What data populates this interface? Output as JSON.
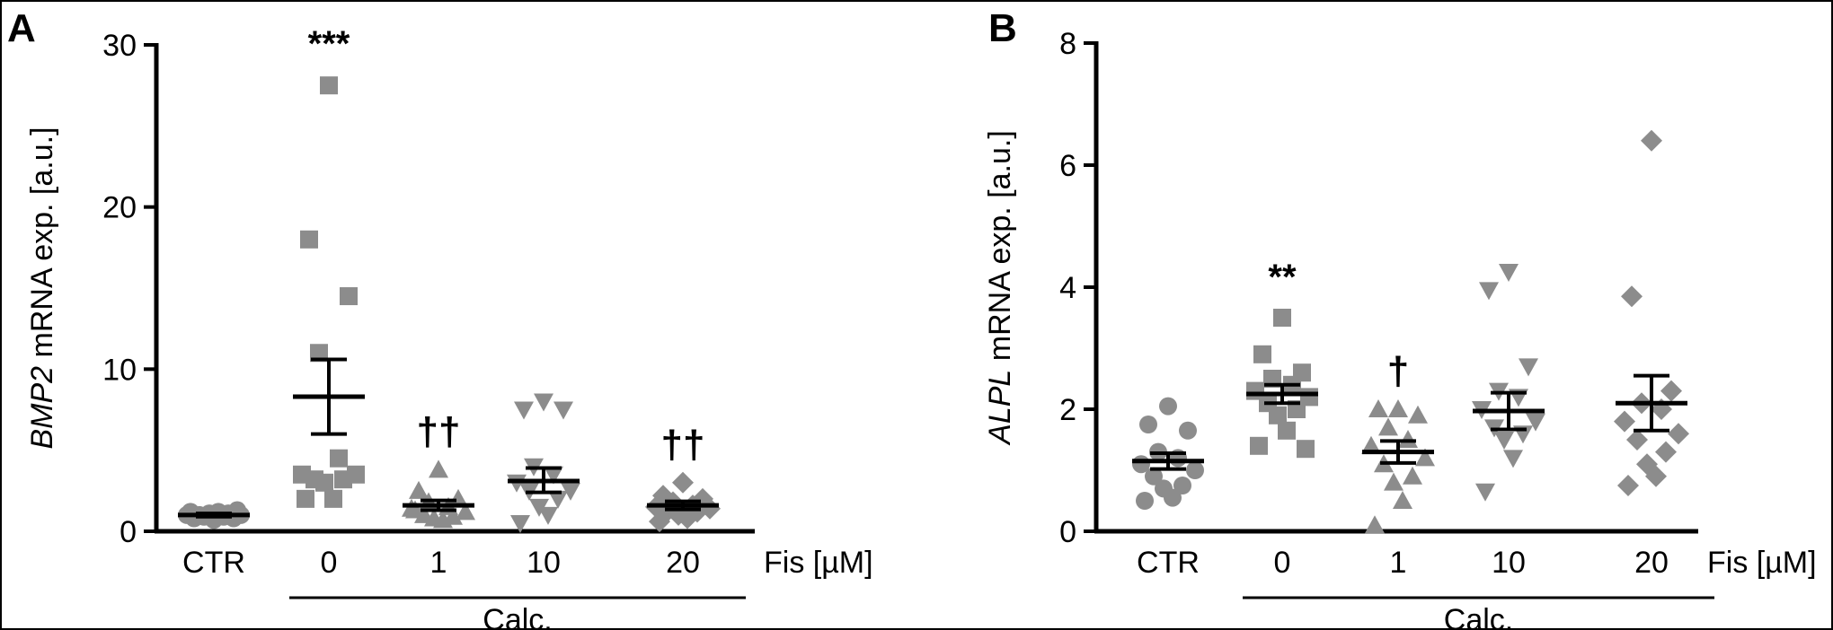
{
  "chart_data": [
    {
      "type": "scatter",
      "panel": "A",
      "ylabel_italic": "BMP2",
      "ylabel_rest": " mRNA exp. [a.u.]",
      "ylim": [
        0,
        30
      ],
      "yticks": [
        "0",
        "10",
        "20",
        "30"
      ],
      "categories": [
        "CTR",
        "0",
        "1",
        "10",
        "20"
      ],
      "x_unit_label": "Fis [µM]",
      "group_label": "Calc.",
      "group_span": [
        1,
        4
      ],
      "marker_color": "#8c8c8c",
      "series": [
        {
          "category": "CTR",
          "marker": "circle",
          "values": [
            0.7,
            0.8,
            0.8,
            0.9,
            0.9,
            1.0,
            1.0,
            1.0,
            1.1,
            1.1,
            1.2,
            1.2,
            1.3
          ],
          "mean": 1.0,
          "sem_low": 0.9,
          "sem_high": 1.1,
          "sig": ""
        },
        {
          "category": "0",
          "marker": "square",
          "values": [
            27.5,
            18.0,
            14.5,
            11.0,
            4.5,
            3.5,
            3.5,
            3.2,
            3.2,
            3.0,
            2.0,
            2.0
          ],
          "mean": 8.3,
          "sem_low": 6.0,
          "sem_high": 10.6,
          "sig": "***"
        },
        {
          "category": "1",
          "marker": "triangle-up",
          "values": [
            3.8,
            2.5,
            2.0,
            1.8,
            1.5,
            1.4,
            1.2,
            1.0,
            0.9,
            0.8,
            0.7,
            1.3
          ],
          "mean": 1.6,
          "sem_low": 1.3,
          "sem_high": 1.9,
          "sig": "††"
        },
        {
          "category": "10",
          "marker": "triangle-down",
          "values": [
            8.0,
            7.5,
            7.5,
            4.0,
            3.5,
            3.0,
            2.5,
            2.5,
            2.0,
            1.5,
            1.0,
            0.5
          ],
          "mean": 3.1,
          "sem_low": 2.4,
          "sem_high": 3.9,
          "sig": ""
        },
        {
          "category": "20",
          "marker": "diamond",
          "values": [
            3.0,
            2.2,
            2.0,
            1.8,
            1.6,
            1.5,
            1.4,
            1.3,
            1.2,
            1.0,
            0.8,
            0.6
          ],
          "mean": 1.6,
          "sem_low": 1.35,
          "sem_high": 1.85,
          "sig": "††"
        }
      ]
    },
    {
      "type": "scatter",
      "panel": "B",
      "ylabel_italic": "ALPL",
      "ylabel_rest": " mRNA exp. [a.u.]",
      "ylim": [
        0,
        8
      ],
      "yticks": [
        "0",
        "2",
        "4",
        "6",
        "8"
      ],
      "categories": [
        "CTR",
        "0",
        "1",
        "10",
        "20"
      ],
      "x_unit_label": "Fis [µM]",
      "group_label": "Calc.",
      "group_span": [
        1,
        4
      ],
      "marker_color": "#8c8c8c",
      "series": [
        {
          "category": "CTR",
          "marker": "circle",
          "values": [
            2.05,
            1.75,
            1.65,
            1.3,
            1.2,
            1.1,
            1.0,
            0.9,
            0.75,
            0.7,
            0.55,
            0.5
          ],
          "mean": 1.15,
          "sem_low": 1.02,
          "sem_high": 1.28,
          "sig": ""
        },
        {
          "category": "0",
          "marker": "square",
          "values": [
            3.5,
            2.9,
            2.6,
            2.5,
            2.4,
            2.3,
            2.2,
            2.1,
            2.0,
            1.9,
            1.65,
            1.4,
            1.35
          ],
          "mean": 2.25,
          "sem_low": 2.1,
          "sem_high": 2.4,
          "sig": "**"
        },
        {
          "category": "1",
          "marker": "triangle-up",
          "values": [
            2.0,
            2.0,
            1.9,
            1.7,
            1.5,
            1.4,
            1.2,
            1.1,
            0.9,
            0.8,
            0.5,
            0.1
          ],
          "mean": 1.3,
          "sem_low": 1.12,
          "sem_high": 1.48,
          "sig": "†"
        },
        {
          "category": "10",
          "marker": "triangle-down",
          "values": [
            4.25,
            3.95,
            2.7,
            2.3,
            2.2,
            2.0,
            1.8,
            1.7,
            1.6,
            1.5,
            1.2,
            0.65
          ],
          "mean": 1.97,
          "sem_low": 1.67,
          "sem_high": 2.27,
          "sig": ""
        },
        {
          "category": "20",
          "marker": "diamond",
          "values": [
            6.4,
            3.85,
            2.3,
            2.1,
            2.0,
            1.8,
            1.6,
            1.5,
            1.3,
            1.1,
            0.9,
            0.75
          ],
          "mean": 2.1,
          "sem_low": 1.65,
          "sem_high": 2.55,
          "sig": ""
        }
      ]
    }
  ]
}
